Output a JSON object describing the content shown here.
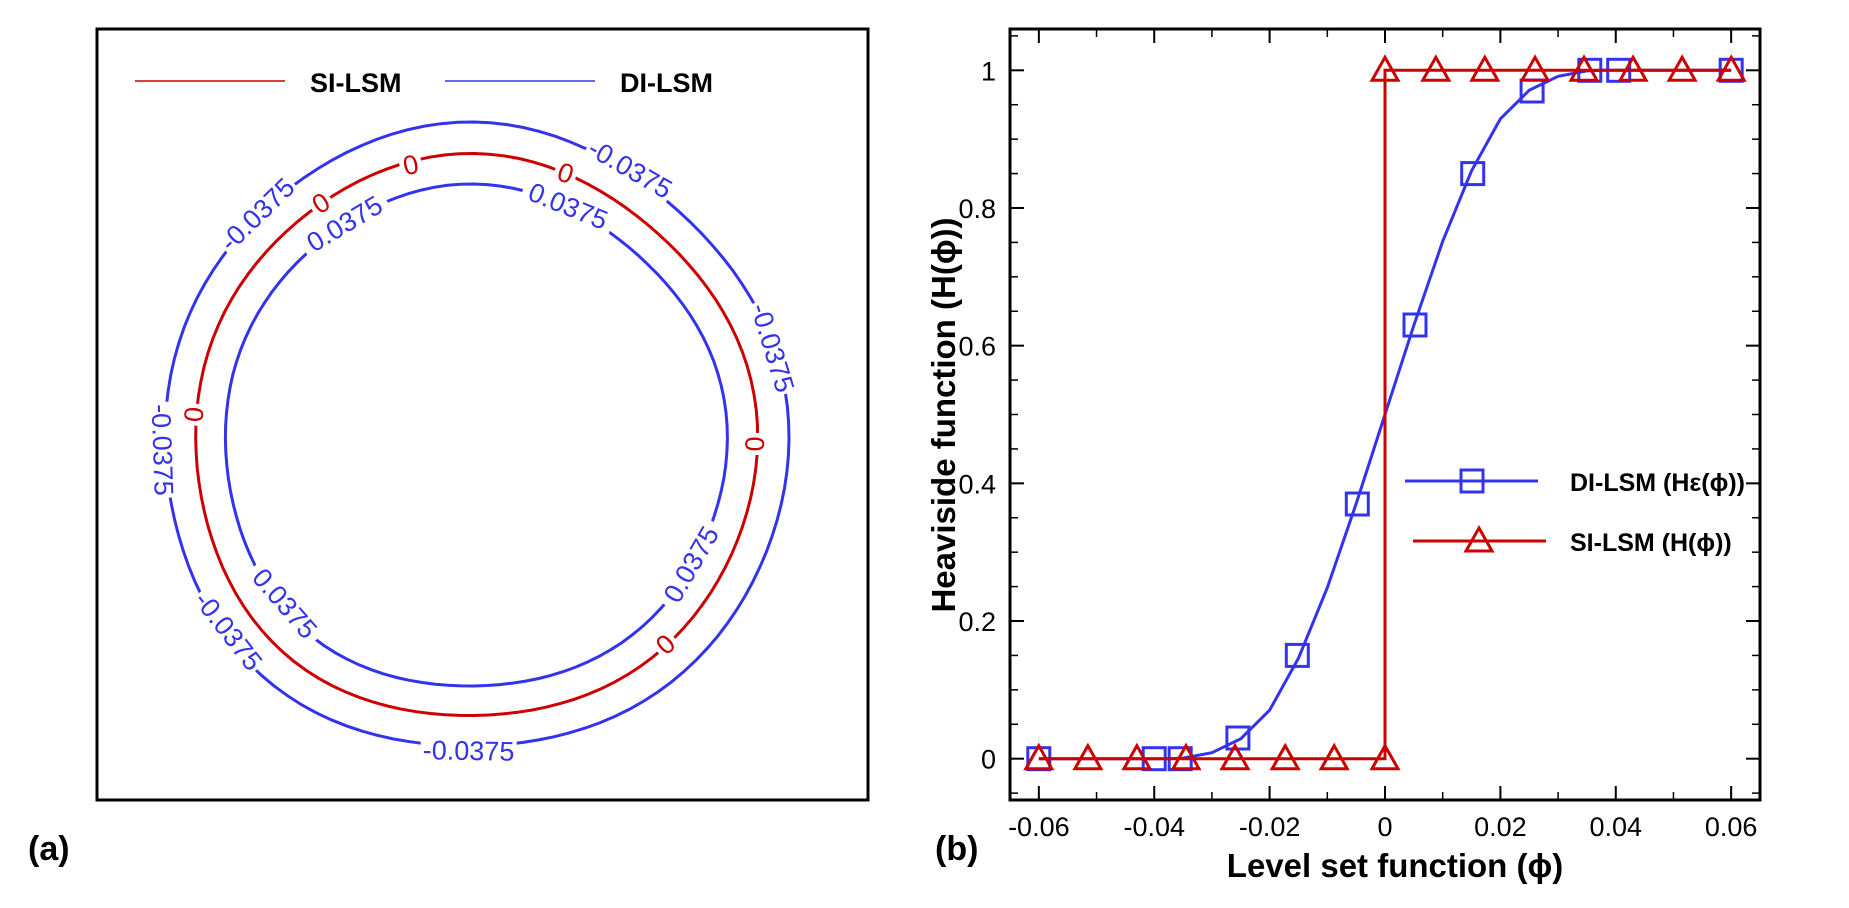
{
  "panels": {
    "a_label": "(a)",
    "b_label": "(b)"
  },
  "colors": {
    "si": "#cc0000",
    "di": "#3333ee",
    "axis": "#000000"
  },
  "chart_data": [
    {
      "type": "contour",
      "legend": {
        "placement": "top",
        "entries": [
          "SI-LSM",
          "DI-LSM"
        ]
      },
      "contour_labels": {
        "si": "0",
        "di_outer": "-0.0375",
        "di_inner": "0.0375"
      }
    },
    {
      "type": "line",
      "xlabel": "Level set function (ϕ)",
      "ylabel": "Heaviside function (H(ϕ))",
      "xlim": [
        -0.065,
        0.065
      ],
      "ylim": [
        -0.06,
        1.06
      ],
      "xticks": [
        -0.06,
        -0.04,
        -0.02,
        0,
        0.02,
        0.04,
        0.06
      ],
      "xtick_labels": [
        "-0.06",
        "-0.04",
        "-0.02",
        "0",
        "0.02",
        "0.04",
        "0.06"
      ],
      "yticks": [
        0,
        0.2,
        0.4,
        0.6,
        0.8,
        1
      ],
      "ytick_labels": [
        "0",
        "0.2",
        "0.4",
        "0.6",
        "0.8",
        "1"
      ],
      "legend_placement": "center-right",
      "series": [
        {
          "name": "DI-LSM (Hε(ϕ))",
          "color": "#3333ee",
          "marker": "square",
          "line_x": [
            -0.06,
            -0.05,
            -0.04,
            -0.0375,
            -0.035,
            -0.03,
            -0.025,
            -0.02,
            -0.015,
            -0.01,
            -0.005,
            0,
            0.005,
            0.01,
            0.015,
            0.02,
            0.025,
            0.03,
            0.035,
            0.0375,
            0.04,
            0.05,
            0.06
          ],
          "line_y": [
            0,
            0,
            0,
            0,
            0.0009,
            0.0087,
            0.029,
            0.0705,
            0.1461,
            0.2484,
            0.3705,
            0.5,
            0.6295,
            0.7516,
            0.8539,
            0.9295,
            0.971,
            0.9913,
            0.9991,
            1,
            1,
            1,
            1
          ],
          "marker_x": [
            -0.06,
            -0.04,
            -0.0355,
            -0.0255,
            -0.0152,
            -0.0048,
            0.0052,
            0.0152,
            0.0255,
            0.0355,
            0.0405,
            0.06
          ],
          "marker_y": [
            0,
            0,
            0,
            0.03,
            0.15,
            0.37,
            0.63,
            0.85,
            0.97,
            1,
            1,
            1
          ]
        },
        {
          "name": "SI-LSM (H(ϕ))",
          "color": "#cc0000",
          "marker": "triangle",
          "line_x": [
            -0.06,
            0,
            0,
            0.06
          ],
          "line_y": [
            0,
            0,
            1,
            1
          ],
          "marker_x": [
            -0.06,
            -0.0515,
            -0.043,
            -0.0345,
            -0.026,
            -0.0173,
            -0.0088,
            0,
            0,
            0.0088,
            0.0173,
            0.026,
            0.0345,
            0.043,
            0.0515,
            0.06
          ],
          "marker_y": [
            0,
            0,
            0,
            0,
            0,
            0,
            0,
            0,
            1,
            1,
            1,
            1,
            1,
            1,
            1,
            1
          ]
        }
      ]
    }
  ]
}
